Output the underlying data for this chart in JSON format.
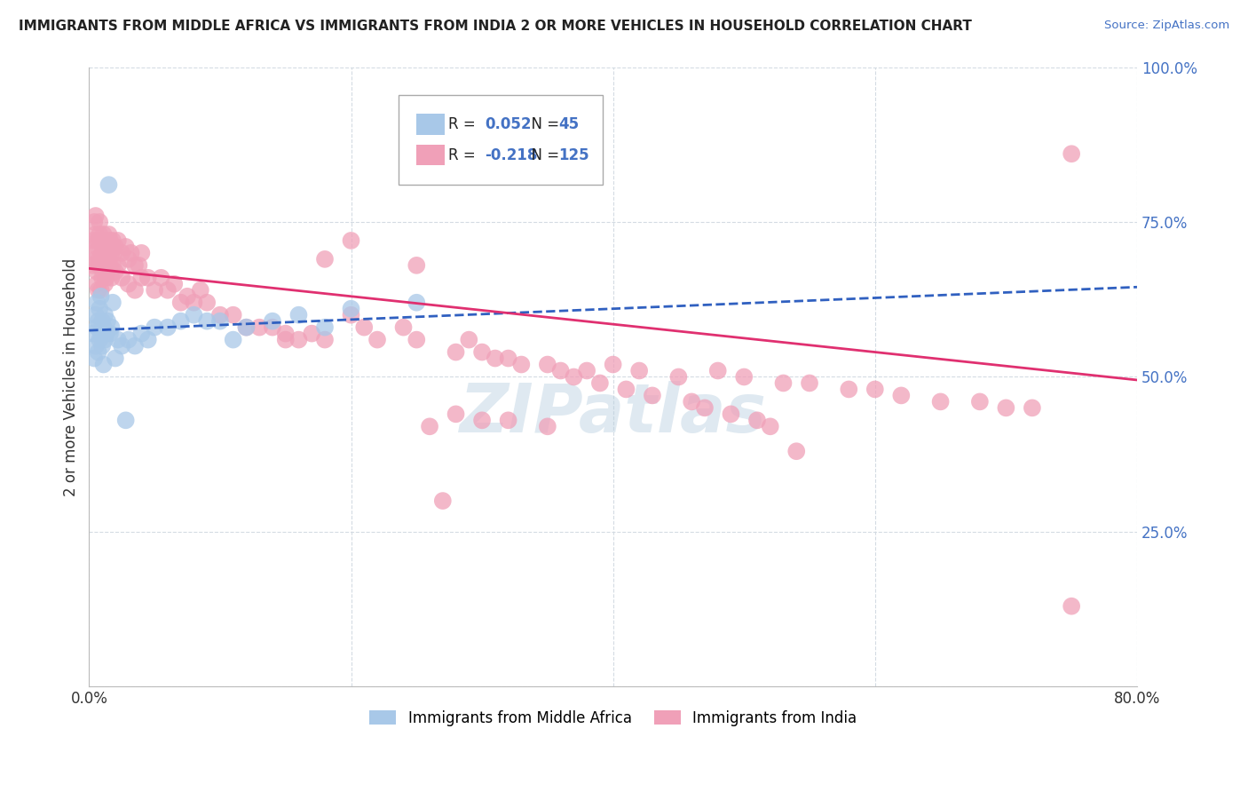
{
  "title": "IMMIGRANTS FROM MIDDLE AFRICA VS IMMIGRANTS FROM INDIA 2 OR MORE VEHICLES IN HOUSEHOLD CORRELATION CHART",
  "source": "Source: ZipAtlas.com",
  "ylabel": "2 or more Vehicles in Household",
  "watermark": "ZIPatlas",
  "blue_R": 0.052,
  "blue_N": 45,
  "pink_R": -0.218,
  "pink_N": 125,
  "blue_label": "Immigrants from Middle Africa",
  "pink_label": "Immigrants from India",
  "xlim": [
    0.0,
    0.8
  ],
  "ylim": [
    0.0,
    1.0
  ],
  "blue_color": "#a8c8e8",
  "pink_color": "#f0a0b8",
  "blue_line_color": "#3060c0",
  "pink_line_color": "#e03070",
  "grid_color": "#d0d8e0",
  "background_color": "#ffffff",
  "blue_line_start_y": 0.575,
  "blue_line_end_y": 0.645,
  "pink_line_start_y": 0.675,
  "pink_line_end_y": 0.495,
  "blue_scatter_x": [
    0.003,
    0.004,
    0.005,
    0.005,
    0.006,
    0.006,
    0.007,
    0.007,
    0.008,
    0.008,
    0.009,
    0.009,
    0.01,
    0.01,
    0.011,
    0.011,
    0.012,
    0.012,
    0.013,
    0.014,
    0.015,
    0.016,
    0.017,
    0.018,
    0.02,
    0.022,
    0.025,
    0.028,
    0.03,
    0.035,
    0.04,
    0.045,
    0.05,
    0.06,
    0.07,
    0.08,
    0.09,
    0.1,
    0.11,
    0.12,
    0.14,
    0.16,
    0.18,
    0.2,
    0.25
  ],
  "blue_scatter_y": [
    0.57,
    0.53,
    0.6,
    0.55,
    0.62,
    0.58,
    0.59,
    0.54,
    0.61,
    0.56,
    0.63,
    0.57,
    0.59,
    0.55,
    0.58,
    0.52,
    0.6,
    0.56,
    0.57,
    0.59,
    0.81,
    0.57,
    0.58,
    0.62,
    0.53,
    0.56,
    0.55,
    0.43,
    0.56,
    0.55,
    0.57,
    0.56,
    0.58,
    0.58,
    0.59,
    0.6,
    0.59,
    0.59,
    0.56,
    0.58,
    0.59,
    0.6,
    0.58,
    0.61,
    0.62
  ],
  "pink_scatter_x": [
    0.003,
    0.003,
    0.004,
    0.004,
    0.005,
    0.005,
    0.005,
    0.006,
    0.006,
    0.006,
    0.007,
    0.007,
    0.007,
    0.008,
    0.008,
    0.008,
    0.009,
    0.009,
    0.009,
    0.01,
    0.01,
    0.01,
    0.011,
    0.011,
    0.011,
    0.012,
    0.012,
    0.012,
    0.013,
    0.013,
    0.014,
    0.014,
    0.015,
    0.015,
    0.016,
    0.016,
    0.017,
    0.017,
    0.018,
    0.018,
    0.019,
    0.02,
    0.02,
    0.022,
    0.022,
    0.025,
    0.025,
    0.028,
    0.03,
    0.03,
    0.032,
    0.035,
    0.035,
    0.038,
    0.04,
    0.04,
    0.045,
    0.05,
    0.055,
    0.06,
    0.065,
    0.07,
    0.075,
    0.08,
    0.085,
    0.09,
    0.1,
    0.11,
    0.12,
    0.13,
    0.14,
    0.15,
    0.16,
    0.17,
    0.18,
    0.2,
    0.21,
    0.22,
    0.24,
    0.25,
    0.28,
    0.3,
    0.32,
    0.35,
    0.38,
    0.4,
    0.42,
    0.45,
    0.48,
    0.5,
    0.53,
    0.55,
    0.58,
    0.6,
    0.62,
    0.65,
    0.68,
    0.7,
    0.72,
    0.75,
    0.75,
    0.3,
    0.35,
    0.28,
    0.32,
    0.18,
    0.2,
    0.15,
    0.25,
    0.26,
    0.27,
    0.29,
    0.31,
    0.33,
    0.36,
    0.37,
    0.39,
    0.41,
    0.43,
    0.46,
    0.47,
    0.49,
    0.51,
    0.52,
    0.54
  ],
  "pink_scatter_y": [
    0.72,
    0.68,
    0.7,
    0.75,
    0.73,
    0.69,
    0.76,
    0.71,
    0.67,
    0.65,
    0.72,
    0.68,
    0.64,
    0.73,
    0.69,
    0.75,
    0.72,
    0.68,
    0.64,
    0.7,
    0.66,
    0.72,
    0.71,
    0.67,
    0.73,
    0.69,
    0.65,
    0.72,
    0.7,
    0.66,
    0.71,
    0.67,
    0.73,
    0.69,
    0.68,
    0.72,
    0.7,
    0.66,
    0.72,
    0.68,
    0.7,
    0.71,
    0.67,
    0.72,
    0.68,
    0.7,
    0.66,
    0.71,
    0.69,
    0.65,
    0.7,
    0.68,
    0.64,
    0.68,
    0.66,
    0.7,
    0.66,
    0.64,
    0.66,
    0.64,
    0.65,
    0.62,
    0.63,
    0.62,
    0.64,
    0.62,
    0.6,
    0.6,
    0.58,
    0.58,
    0.58,
    0.57,
    0.56,
    0.57,
    0.56,
    0.6,
    0.58,
    0.56,
    0.58,
    0.56,
    0.54,
    0.54,
    0.53,
    0.52,
    0.51,
    0.52,
    0.51,
    0.5,
    0.51,
    0.5,
    0.49,
    0.49,
    0.48,
    0.48,
    0.47,
    0.46,
    0.46,
    0.45,
    0.45,
    0.13,
    0.86,
    0.43,
    0.42,
    0.44,
    0.43,
    0.69,
    0.72,
    0.56,
    0.68,
    0.42,
    0.3,
    0.56,
    0.53,
    0.52,
    0.51,
    0.5,
    0.49,
    0.48,
    0.47,
    0.46,
    0.45,
    0.44,
    0.43,
    0.42,
    0.38
  ]
}
